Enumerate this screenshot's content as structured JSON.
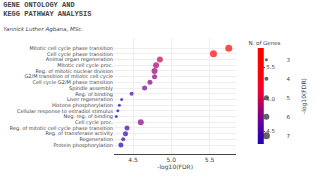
{
  "chart_data": {
    "type": "scatter",
    "title": "GENE ONTOLOGY AND\nKEGG PATHWAY ANALYSIS",
    "subtitle": "Yannick Luther Agbana, MSc.",
    "xlabel": "-log10(FDR)",
    "categories": [
      "Mitotic cell cycle phase transition",
      "Cell cycle phase transition",
      "Animal organ regeneration",
      "Mitotic cell cycle proc.",
      "Reg. of mitotic nuclear division",
      "G2/M transition of mitotic cell cycle",
      "Cell cycle G2/M phase transition",
      "Spindle assembly",
      "Reg. of binding",
      "Liver regeneration",
      "Histone phosphorylation",
      "Cellular response to estradiol stimulus",
      "Neg. reg. of binding",
      "Cell cycle proc.",
      "Reg. of mitotic cell cycle phase transition",
      "Reg. of transferase activity",
      "Regeneration",
      "Protein phosphorylation"
    ],
    "values": [
      5.75,
      5.55,
      4.85,
      4.8,
      4.78,
      4.78,
      4.72,
      4.65,
      4.48,
      4.35,
      4.32,
      4.3,
      4.28,
      4.6,
      4.42,
      4.4,
      4.37,
      4.34
    ],
    "sizes": [
      7,
      7,
      6,
      6,
      6,
      5,
      5,
      5,
      4,
      3,
      3,
      3,
      3,
      6,
      5,
      5,
      4,
      5
    ],
    "color_values": [
      5.75,
      5.55,
      5.0,
      4.85,
      4.8,
      4.78,
      4.72,
      4.68,
      4.5,
      4.35,
      4.33,
      4.31,
      4.3,
      4.75,
      4.45,
      4.42,
      4.38,
      4.35
    ],
    "xlim": [
      4.25,
      5.85
    ],
    "xticks": [
      4.5,
      {
        "value": 5.0,
        "label": "5.0"
      },
      5.5
    ],
    "grid": true,
    "size_legend": {
      "title": "N. of Genes",
      "values": [
        3,
        4,
        5,
        6,
        7
      ],
      "color": "#222222"
    },
    "color_scale": {
      "title": "-log10(FDR)",
      "range": [
        4.3,
        5.8
      ],
      "ticks": [
        4.5,
        {
          "value": 5.0,
          "label": "5.0"
        },
        5.5
      ]
    }
  }
}
